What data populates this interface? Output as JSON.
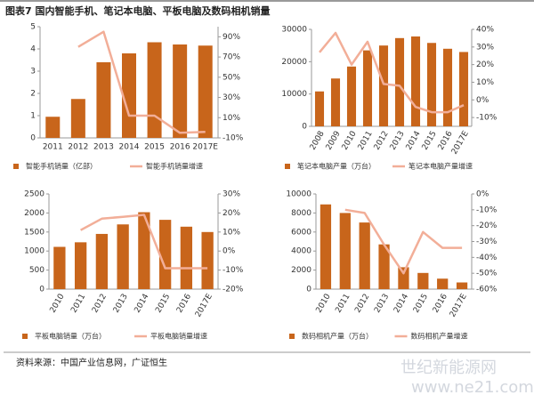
{
  "title": "图表7 国内智能手机、笔记本电脑、平板电脑及数码相机销量",
  "source": "资料来源：中国产业信息网，广证恒生",
  "watermark": [
    "世纪新能源网",
    "www.ne21.com"
  ],
  "chart_data": [
    {
      "type": "combo",
      "categories": [
        "2011",
        "2012",
        "2013",
        "2014",
        "2015",
        "2016",
        "2017E"
      ],
      "series": [
        {
          "name": "智能手机销量（亿部）",
          "color": "#c8651b",
          "type": "bar",
          "values": [
            0.95,
            1.75,
            3.4,
            3.8,
            4.3,
            4.2,
            4.15
          ]
        },
        {
          "name": "智能手机销量增速",
          "color": "#f2ae98",
          "type": "line",
          "axis": "y2",
          "values": [
            null,
            80,
            95,
            12,
            12,
            -5,
            -4
          ]
        }
      ],
      "ylim": [
        0,
        5
      ],
      "yticks": [
        0,
        1,
        2,
        3,
        4,
        5
      ],
      "y2lim": [
        -10,
        100
      ],
      "y2ticks": [
        {
          "value": -10,
          "label": "-10%"
        },
        {
          "value": 10,
          "label": "10%"
        },
        {
          "value": 30,
          "label": "30%"
        },
        {
          "value": 50,
          "label": "50%"
        },
        {
          "value": 70,
          "label": "70%"
        },
        {
          "value": 90,
          "label": "90%"
        }
      ],
      "rotate_x_labels": false
    },
    {
      "type": "combo",
      "categories": [
        "2008",
        "2009",
        "2010",
        "2011",
        "2012",
        "2013",
        "2014",
        "2015",
        "2016",
        "2017E"
      ],
      "series": [
        {
          "name": "笔记本电脑产量（万台）",
          "color": "#c8651b",
          "type": "bar",
          "values": [
            10800,
            14800,
            18500,
            23500,
            25000,
            27300,
            27800,
            25800,
            24000,
            23000
          ]
        },
        {
          "name": "笔记本电脑产量增速",
          "color": "#f2ae98",
          "type": "line",
          "axis": "y2",
          "values": [
            27,
            38,
            20,
            33,
            9,
            8,
            -4,
            -7,
            -7,
            -3
          ]
        }
      ],
      "ylim": [
        0,
        30000
      ],
      "yticks": [
        0,
        10000,
        20000,
        30000
      ],
      "y2lim": [
        -15,
        40
      ],
      "y2ticks": [
        {
          "value": -10,
          "label": "-10%"
        },
        {
          "value": 0,
          "label": "0%"
        },
        {
          "value": 10,
          "label": "10%"
        },
        {
          "value": 20,
          "label": "20%"
        },
        {
          "value": 30,
          "label": "30%"
        },
        {
          "value": 40,
          "label": "40%"
        }
      ],
      "rotate_x_labels": true
    },
    {
      "type": "combo",
      "categories": [
        "2010",
        "2011",
        "2012",
        "2013",
        "2014",
        "2015",
        "2016",
        "2017E"
      ],
      "series": [
        {
          "name": "平板电脑销量（万台）",
          "color": "#c8651b",
          "type": "bar",
          "values": [
            1110,
            1230,
            1450,
            1700,
            2020,
            1820,
            1640,
            1500
          ]
        },
        {
          "name": "平板电脑销量增速",
          "color": "#f2ae98",
          "type": "line",
          "axis": "y2",
          "values": [
            null,
            11,
            17,
            18,
            19,
            -9,
            -9,
            -9
          ]
        }
      ],
      "ylim": [
        0,
        2500
      ],
      "yticks": [
        0,
        500,
        1000,
        1500,
        2000,
        2500
      ],
      "y2lim": [
        -20,
        30
      ],
      "y2ticks": [
        {
          "value": -20,
          "label": "-20%"
        },
        {
          "value": -10,
          "label": "-10%"
        },
        {
          "value": 0,
          "label": "0%"
        },
        {
          "value": 10,
          "label": "10%"
        },
        {
          "value": 20,
          "label": "20%"
        },
        {
          "value": 30,
          "label": "30%"
        }
      ],
      "rotate_x_labels": true
    },
    {
      "type": "combo",
      "categories": [
        "2010",
        "2011",
        "2012",
        "2013",
        "2014",
        "2015",
        "2016",
        "2017E"
      ],
      "series": [
        {
          "name": "数码相机产量（万台）",
          "color": "#c8651b",
          "type": "bar",
          "values": [
            8900,
            8000,
            7000,
            4700,
            2300,
            1700,
            1100,
            700
          ]
        },
        {
          "name": "数码相机产量增速",
          "color": "#f2ae98",
          "type": "line",
          "axis": "y2",
          "values": [
            null,
            -10,
            -12,
            -32,
            -50,
            -24,
            -34,
            -34
          ]
        }
      ],
      "ylim": [
        0,
        10000
      ],
      "yticks": [
        0,
        2000,
        4000,
        6000,
        8000,
        10000
      ],
      "y2lim": [
        -60,
        0
      ],
      "y2ticks": [
        {
          "value": -60,
          "label": "-60%"
        },
        {
          "value": -50,
          "label": "-50%"
        },
        {
          "value": -40,
          "label": "-40%"
        },
        {
          "value": -30,
          "label": "-30%"
        },
        {
          "value": -20,
          "label": "-20%"
        },
        {
          "value": -10,
          "label": "-10%"
        },
        {
          "value": 0,
          "label": "0%"
        }
      ],
      "rotate_x_labels": true
    }
  ]
}
